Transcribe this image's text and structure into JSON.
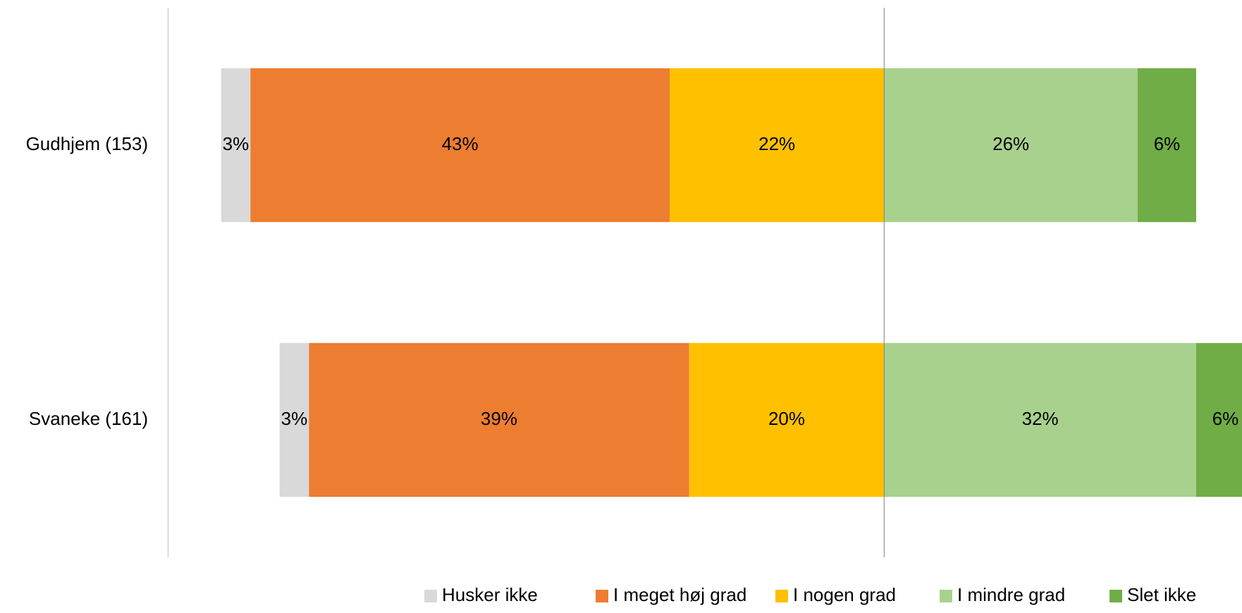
{
  "chart_data": {
    "type": "diverging-bar",
    "categories": [
      "Gudhjem (153)",
      "Svaneke (161)"
    ],
    "xlim": [
      -73.4,
      36.7
    ],
    "series": [
      {
        "name": "Husker ikke",
        "color": "#d9d9d9",
        "side": "left",
        "values": [
          3,
          3
        ],
        "value_labels": [
          "3%",
          "3%"
        ]
      },
      {
        "name": "I meget høj grad",
        "color": "#ed7d31",
        "side": "left",
        "values": [
          43,
          39
        ],
        "value_labels": [
          "43%",
          "39%"
        ]
      },
      {
        "name": "I nogen grad",
        "color": "#ffc000",
        "side": "left",
        "values": [
          22,
          20
        ],
        "value_labels": [
          "22%",
          "20%"
        ]
      },
      {
        "name": "I mindre grad",
        "color": "#a9d18e",
        "side": "right",
        "values": [
          26,
          32
        ],
        "value_labels": [
          "26%",
          "32%"
        ]
      },
      {
        "name": "Slet ikke",
        "color": "#70ad47",
        "side": "right",
        "values": [
          6,
          6
        ],
        "value_labels": [
          "6%",
          "6%"
        ]
      }
    ],
    "legend": "bottom"
  }
}
